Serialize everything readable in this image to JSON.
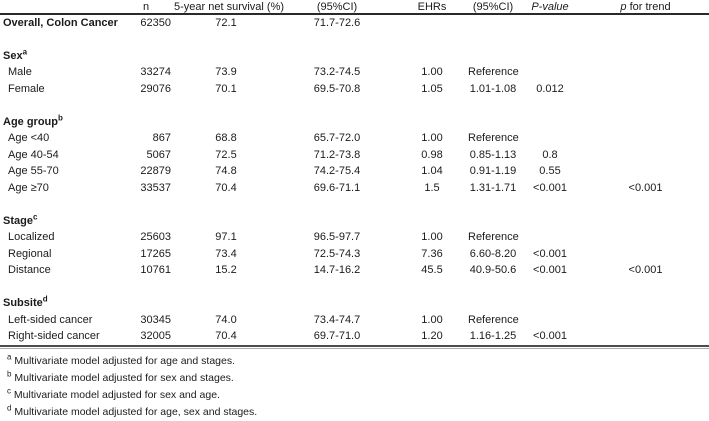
{
  "table": {
    "columns": [
      {
        "id": "label",
        "label": "",
        "italic": "none"
      },
      {
        "id": "n",
        "label": "n",
        "italic": "none"
      },
      {
        "id": "survival",
        "label": "5-year net survival (%)",
        "italic": "none"
      },
      {
        "id": "ci1",
        "label": "(95%CI)",
        "italic": "none"
      },
      {
        "id": "ehrs",
        "label": "EHRs",
        "italic": "none"
      },
      {
        "id": "ci2",
        "label": "(95%CI)",
        "italic": "none"
      },
      {
        "id": "pvalue",
        "label": "P-value",
        "italic": "all"
      },
      {
        "id": "ptrend",
        "label": "p for trend",
        "italic": "lead"
      }
    ],
    "rows": [
      {
        "type": "data",
        "label": "Overall, Colon Cancer",
        "bold": true,
        "indent": false,
        "values": [
          "62350",
          "72.1",
          "71.7-72.6",
          "",
          "",
          "",
          ""
        ]
      },
      {
        "type": "spacer"
      },
      {
        "type": "section",
        "label": "Sex",
        "sup": "a"
      },
      {
        "type": "data",
        "label": "Male",
        "indent": true,
        "values": [
          "33274",
          "73.9",
          "73.2-74.5",
          "1.00",
          "Reference",
          "",
          ""
        ]
      },
      {
        "type": "data",
        "label": "Female",
        "indent": true,
        "values": [
          "29076",
          "70.1",
          "69.5-70.8",
          "1.05",
          "1.01-1.08",
          "0.012",
          ""
        ]
      },
      {
        "type": "spacer"
      },
      {
        "type": "section",
        "label": "Age group",
        "sup": "b"
      },
      {
        "type": "data",
        "label": "Age <40",
        "indent": true,
        "values": [
          "867",
          "68.8",
          "65.7-72.0",
          "1.00",
          "Reference",
          "",
          ""
        ]
      },
      {
        "type": "data",
        "label": "Age 40-54",
        "indent": true,
        "values": [
          "5067",
          "72.5",
          "71.2-73.8",
          "0.98",
          "0.85-1.13",
          "0.8",
          ""
        ]
      },
      {
        "type": "data",
        "label": "Age 55-70",
        "indent": true,
        "values": [
          "22879",
          "74.8",
          "74.2-75.4",
          "1.04",
          "0.91-1.19",
          "0.55",
          ""
        ]
      },
      {
        "type": "data",
        "label": "Age ≥70",
        "indent": true,
        "values": [
          "33537",
          "70.4",
          "69.6-71.1",
          "1.5",
          "1.31-1.71",
          "<0.001",
          "<0.001"
        ]
      },
      {
        "type": "spacer"
      },
      {
        "type": "section",
        "label": "Stage",
        "sup": "c"
      },
      {
        "type": "data",
        "label": "Localized",
        "indent": true,
        "values": [
          "25603",
          "97.1",
          "96.5-97.7",
          "1.00",
          "Reference",
          "",
          ""
        ]
      },
      {
        "type": "data",
        "label": "Regional",
        "indent": true,
        "values": [
          "17265",
          "73.4",
          "72.5-74.3",
          "7.36",
          "6.60-8.20",
          "<0.001",
          ""
        ]
      },
      {
        "type": "data",
        "label": "Distance",
        "indent": true,
        "values": [
          "10761",
          "15.2",
          "14.7-16.2",
          "45.5",
          "40.9-50.6",
          "<0.001",
          "<0.001"
        ]
      },
      {
        "type": "spacer"
      },
      {
        "type": "section",
        "label": "Subsite",
        "sup": "d"
      },
      {
        "type": "data",
        "label": "Left-sided cancer",
        "indent": true,
        "values": [
          "30345",
          "74.0",
          "73.4-74.7",
          "1.00",
          "Reference",
          "",
          ""
        ]
      },
      {
        "type": "data",
        "label": "Right-sided cancer",
        "indent": true,
        "values": [
          "32005",
          "70.4",
          "69.7-71.0",
          "1.20",
          "1.16-1.25",
          "<0.001",
          ""
        ]
      }
    ]
  },
  "footnotes": [
    {
      "marker": "a",
      "text": "Multivariate model adjusted for age and stages."
    },
    {
      "marker": "b",
      "text": "Multivariate model adjusted for sex and stages."
    },
    {
      "marker": "c",
      "text": "Multivariate model adjusted for sex and age."
    },
    {
      "marker": "d",
      "text": "Multivariate model adjusted for age, sex and stages."
    }
  ]
}
